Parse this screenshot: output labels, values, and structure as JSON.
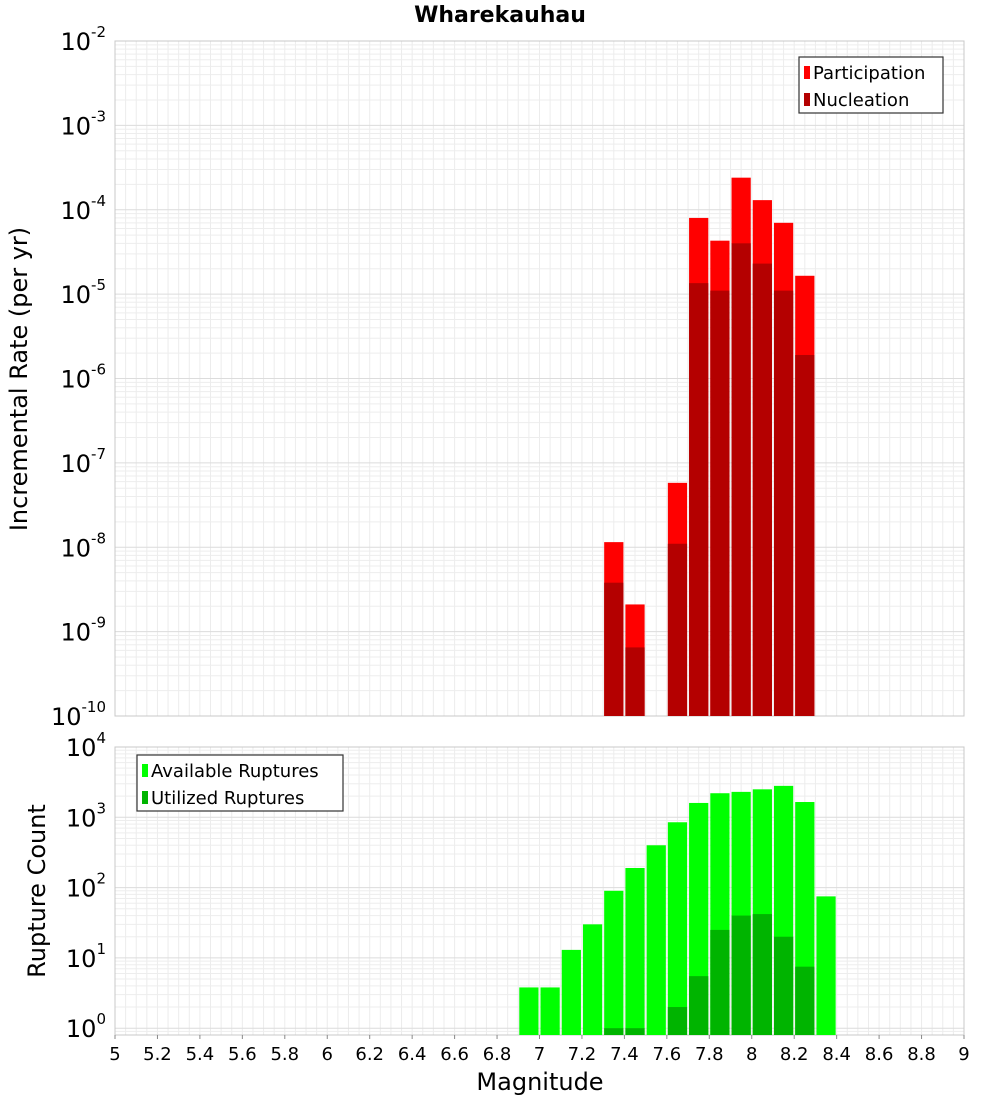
{
  "chart_data": [
    {
      "type": "bar",
      "title": "Wharekauhau",
      "ylabel": "Incremental Rate (per yr)",
      "yscale": "log",
      "ylim": [
        1e-10,
        0.01
      ],
      "y_decades": [
        -10,
        -9,
        -8,
        -7,
        -6,
        -5,
        -4,
        -3,
        -2
      ],
      "grid": true,
      "legend_position": "top-right",
      "bin_width": 0.1,
      "series": [
        {
          "name": "Participation",
          "color": "#ff0000",
          "x": [
            7.35,
            7.45,
            7.65,
            7.75,
            7.85,
            7.95,
            8.05,
            8.15,
            8.25
          ],
          "values": [
            1.15e-08,
            2.1e-09,
            5.8e-08,
            8e-05,
            4.3e-05,
            0.00024,
            0.00013,
            7e-05,
            1.65e-05
          ]
        },
        {
          "name": "Nucleation",
          "color": "#b40000",
          "x": [
            7.35,
            7.45,
            7.65,
            7.75,
            7.85,
            7.95,
            8.05,
            8.15,
            8.25
          ],
          "values": [
            3.8e-09,
            6.5e-10,
            1.1e-08,
            1.35e-05,
            1.1e-05,
            4e-05,
            2.3e-05,
            1.1e-05,
            1.9e-06
          ]
        }
      ]
    },
    {
      "type": "bar",
      "xlabel": "Magnitude",
      "ylabel": "Rupture Count",
      "yscale": "log",
      "ylim": [
        0.8,
        10000
      ],
      "y_decades": [
        0,
        1,
        2,
        3,
        4
      ],
      "grid": true,
      "legend_position": "top-left",
      "bin_width": 0.1,
      "xlim": [
        5,
        9
      ],
      "x_ticks": [
        "5",
        "5.2",
        "5.4",
        "5.6",
        "5.8",
        "6",
        "6.2",
        "6.4",
        "6.6",
        "6.8",
        "7",
        "7.2",
        "7.4",
        "7.6",
        "7.8",
        "8",
        "8.2",
        "8.4",
        "8.6",
        "8.8",
        "9"
      ],
      "series": [
        {
          "name": "Available Ruptures",
          "color": "#00ff00",
          "x": [
            6.95,
            7.05,
            7.15,
            7.25,
            7.35,
            7.45,
            7.55,
            7.65,
            7.75,
            7.85,
            7.95,
            8.05,
            8.15,
            8.25,
            8.35
          ],
          "values": [
            3.8,
            3.8,
            13,
            30,
            90,
            190,
            400,
            850,
            1600,
            2200,
            2300,
            2500,
            2800,
            1650,
            75
          ]
        },
        {
          "name": "Utilized Ruptures",
          "color": "#00b400",
          "x": [
            7.35,
            7.45,
            7.65,
            7.75,
            7.85,
            7.95,
            8.05,
            8.15,
            8.25
          ],
          "values": [
            1,
            1,
            2,
            5.5,
            25,
            40,
            42,
            20,
            7.5
          ]
        }
      ]
    }
  ]
}
